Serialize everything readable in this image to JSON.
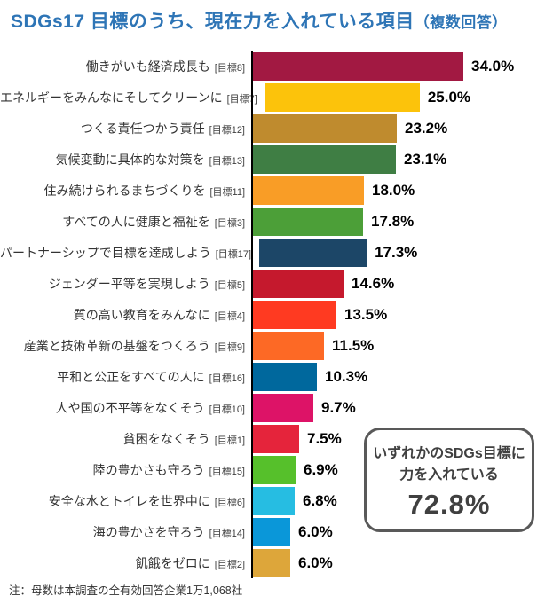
{
  "title": {
    "main": "SDGs17 目標のうち、現在力を入れている項目",
    "suffix": "（複数回答）",
    "color": "#2E75B6"
  },
  "note": "注：母数は本調査の全有効回答企業1万1,068社",
  "callout": {
    "line1": "いずれかのSDGs目標に",
    "line2": "力を入れている",
    "value": "72.8%",
    "border_color": "#595959",
    "text_color": "#404040"
  },
  "chart_data": {
    "type": "bar",
    "orientation": "horizontal",
    "title": "SDGs17 目標のうち、現在力を入れている項目（複数回答）",
    "xlabel": "",
    "ylabel": "",
    "xlim": [
      0,
      36
    ],
    "value_suffix": "%",
    "grid": false,
    "legend": "none",
    "categories": [
      "働きがいも経済成長も",
      "エネルギーをみんなにそしてクリーンに",
      "つくる責任つかう責任",
      "気候変動に具体的な対策を",
      "住み続けられるまちづくりを",
      "すべての人に健康と福祉を",
      "パートナーシップで目標を達成しよう",
      "ジェンダー平等を実現しよう",
      "質の高い教育をみんなに",
      "産業と技術革新の基盤をつくろう",
      "平和と公正をすべての人に",
      "人や国の不平等をなくそう",
      "貧困をなくそう",
      "陸の豊かさも守ろう",
      "安全な水とトイレを世界中に",
      "海の豊かさを守ろう",
      "飢餓をゼロに"
    ],
    "items": [
      {
        "label": "働きがいも経済成長も",
        "goal": "[目標8]",
        "value": 34.0,
        "display": "34.0%",
        "color": "#A21942"
      },
      {
        "label": "エネルギーをみんなにそしてクリーンに",
        "goal": "[目標7]",
        "value": 25.0,
        "display": "25.0%",
        "color": "#FCC30B"
      },
      {
        "label": "つくる責任つかう責任",
        "goal": "[目標12]",
        "value": 23.2,
        "display": "23.2%",
        "color": "#BF8B2E"
      },
      {
        "label": "気候変動に具体的な対策を",
        "goal": "[目標13]",
        "value": 23.1,
        "display": "23.1%",
        "color": "#3F7E44"
      },
      {
        "label": "住み続けられるまちづくりを",
        "goal": "[目標11]",
        "value": 18.0,
        "display": "18.0%",
        "color": "#F99D26"
      },
      {
        "label": "すべての人に健康と福祉を",
        "goal": "[目標3]",
        "value": 17.8,
        "display": "17.8%",
        "color": "#4C9F38"
      },
      {
        "label": "パートナーシップで目標を達成しよう",
        "goal": "[目標17]",
        "value": 17.3,
        "display": "17.3%",
        "color": "#1C4667"
      },
      {
        "label": "ジェンダー平等を実現しよう",
        "goal": "[目標5]",
        "value": 14.6,
        "display": "14.6%",
        "color": "#C5192D"
      },
      {
        "label": "質の高い教育をみんなに",
        "goal": "[目標4]",
        "value": 13.5,
        "display": "13.5%",
        "color": "#FF3A21"
      },
      {
        "label": "産業と技術革新の基盤をつくろう",
        "goal": "[目標9]",
        "value": 11.5,
        "display": "11.5%",
        "color": "#FD6925"
      },
      {
        "label": "平和と公正をすべての人に",
        "goal": "[目標16]",
        "value": 10.3,
        "display": "10.3%",
        "color": "#00689D"
      },
      {
        "label": "人や国の不平等をなくそう",
        "goal": "[目標10]",
        "value": 9.7,
        "display": "9.7%",
        "color": "#DD1367"
      },
      {
        "label": "貧困をなくそう",
        "goal": "[目標1]",
        "value": 7.5,
        "display": "7.5%",
        "color": "#E5243B"
      },
      {
        "label": "陸の豊かさも守ろう",
        "goal": "[目標15]",
        "value": 6.9,
        "display": "6.9%",
        "color": "#56C02B"
      },
      {
        "label": "安全な水とトイレを世界中に",
        "goal": "[目標6]",
        "value": 6.8,
        "display": "6.8%",
        "color": "#26BDE2"
      },
      {
        "label": "海の豊かさを守ろう",
        "goal": "[目標14]",
        "value": 6.0,
        "display": "6.0%",
        "color": "#0A97D9"
      },
      {
        "label": "飢餓をゼロに",
        "goal": "[目標2]",
        "value": 6.0,
        "display": "6.0%",
        "color": "#DDA63A"
      }
    ],
    "annotation": {
      "text": "いずれかのSDGs目標に力を入れている",
      "value": 72.8
    },
    "footnote": "注：母数は本調査の全有効回答企業1万1,068社"
  }
}
